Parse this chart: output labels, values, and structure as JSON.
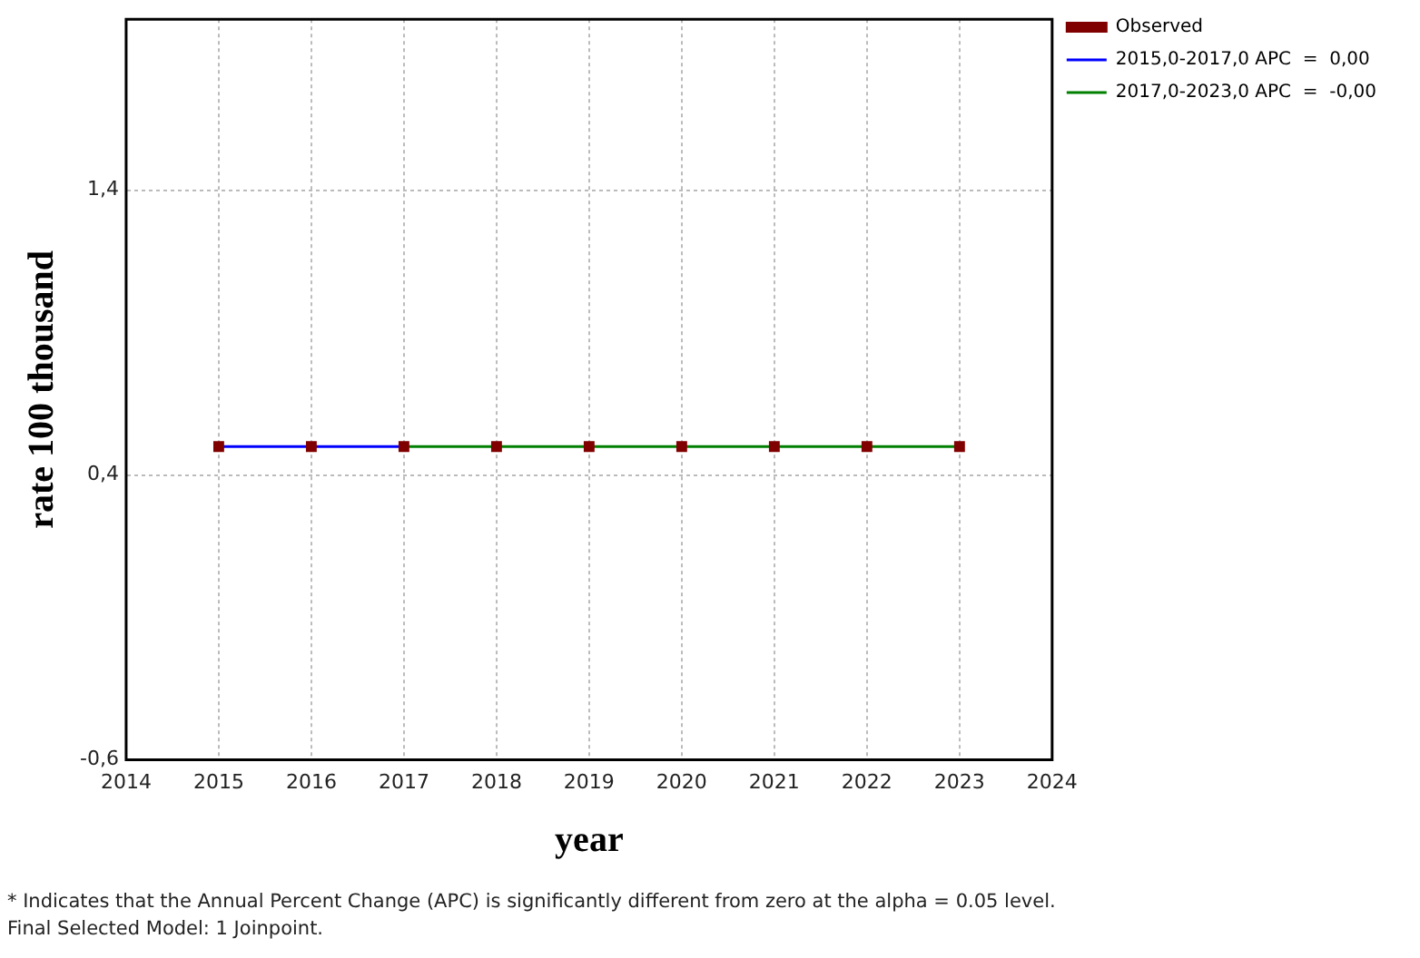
{
  "chart_data": {
    "type": "scatter",
    "xlabel": "year",
    "ylabel": "rate 100 thousand",
    "xlim": [
      2014,
      2024
    ],
    "xticks": [
      2014,
      2015,
      2016,
      2017,
      2018,
      2019,
      2020,
      2021,
      2022,
      2023,
      2024
    ],
    "ylim": [
      -0.6,
      2.0
    ],
    "yticks": [
      {
        "value": -0.6,
        "label": "-0,6"
      },
      {
        "value": 0.4,
        "label": "0,4"
      },
      {
        "value": 1.4,
        "label": "1,4"
      }
    ],
    "x": [
      2015,
      2016,
      2017,
      2018,
      2019,
      2020,
      2021,
      2022,
      2023
    ],
    "series": [
      {
        "name": "Observed",
        "color": "#800000",
        "marker": "square",
        "values": [
          0.5,
          0.5,
          0.5,
          0.5,
          0.5,
          0.5,
          0.5,
          0.5,
          0.5
        ]
      },
      {
        "name": "2015,0-2017,0 APC  =  0,00",
        "type": "line",
        "color": "#0000ff",
        "marker": "none",
        "x": [
          2015,
          2017
        ],
        "values": [
          0.5,
          0.5
        ]
      },
      {
        "name": "2017,0-2023,0 APC  =  -0,00",
        "type": "line",
        "color": "#008000",
        "marker": "none",
        "x": [
          2017,
          2023
        ],
        "values": [
          0.5,
          0.5
        ]
      }
    ],
    "grid": true,
    "legend": "top right",
    "annotations": [
      "* Indicates that the Annual Percent Change (APC) is significantly different from zero at the alpha = 0.05 level.",
      "Final Selected Model: 1 Joinpoint."
    ]
  }
}
